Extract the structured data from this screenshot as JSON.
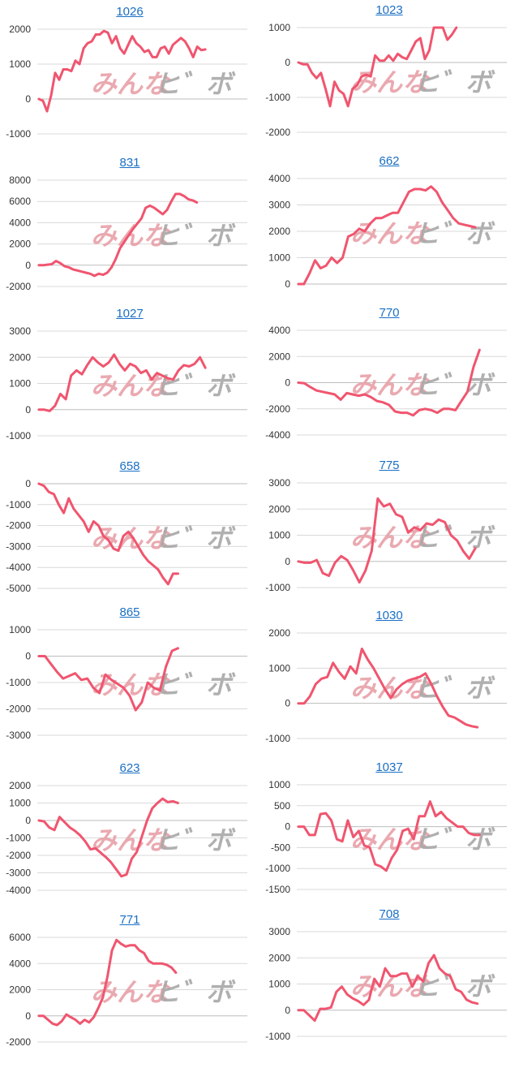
{
  "colors": {
    "line": "#f0556f",
    "grid": "#d9d9d9",
    "title": "#1a6fc4",
    "watermark_red": "#e8a0a8",
    "watermark_gray": "#a8a8a8"
  },
  "watermark": {
    "left": "みんな",
    "right": "ヒ゛ボ"
  },
  "chart_data": [
    {
      "type": "line",
      "title": "1026",
      "yticks": [
        2000,
        1000,
        0,
        -1000
      ],
      "ylim": [
        -1000,
        2000
      ],
      "values": [
        0,
        -50,
        -350,
        100,
        750,
        550,
        850,
        850,
        800,
        1100,
        1000,
        1450,
        1600,
        1650,
        1850,
        1850,
        1950,
        1900,
        1600,
        1800,
        1450,
        1300,
        1550,
        1800,
        1600,
        1500,
        1350,
        1400,
        1200,
        1200,
        1450,
        1500,
        1300,
        1550,
        1650,
        1750,
        1650,
        1450,
        1200,
        1500,
        1400,
        1420
      ]
    },
    {
      "type": "line",
      "title": "1023",
      "yticks": [
        1000,
        0,
        -1000,
        -2000
      ],
      "ylim": [
        -2000,
        1000
      ],
      "values": [
        0,
        -50,
        -50,
        -300,
        -450,
        -300,
        -750,
        -1250,
        -550,
        -800,
        -900,
        -1250,
        -750,
        -650,
        -400,
        -350,
        -400,
        200,
        50,
        50,
        200,
        50,
        250,
        150,
        100,
        350,
        600,
        700,
        100,
        350,
        1000,
        1000,
        1000,
        650,
        800,
        1000
      ]
    },
    {
      "type": "line",
      "title": "831",
      "yticks": [
        8000,
        6000,
        4000,
        2000,
        0,
        -2000
      ],
      "ylim": [
        -2000,
        8000
      ],
      "values": [
        0,
        0,
        50,
        100,
        400,
        200,
        -100,
        -200,
        -400,
        -500,
        -600,
        -700,
        -800,
        -1000,
        -800,
        -900,
        -700,
        -200,
        600,
        1600,
        2200,
        2800,
        3400,
        3900,
        4400,
        5400,
        5600,
        5400,
        5100,
        4800,
        5200,
        6000,
        6700,
        6700,
        6500,
        6200,
        6100,
        5900
      ]
    },
    {
      "type": "line",
      "title": "662",
      "yticks": [
        4000,
        3000,
        2000,
        1000,
        0
      ],
      "ylim": [
        0,
        4000
      ],
      "values": [
        0,
        0,
        400,
        900,
        600,
        700,
        1000,
        800,
        1000,
        1800,
        1900,
        2100,
        2000,
        2300,
        2500,
        2500,
        2600,
        2700,
        2700,
        3100,
        3500,
        3600,
        3600,
        3550,
        3700,
        3500,
        3100,
        2800,
        2500,
        2300,
        2250,
        2200,
        2150
      ]
    },
    {
      "type": "line",
      "title": "1027",
      "yticks": [
        3000,
        2000,
        1000,
        0,
        -1000
      ],
      "ylim": [
        -1000,
        3000
      ],
      "values": [
        0,
        0,
        -50,
        150,
        600,
        400,
        1300,
        1500,
        1350,
        1700,
        2000,
        1800,
        1650,
        1800,
        2100,
        1750,
        1500,
        1750,
        1650,
        1400,
        1500,
        1150,
        1400,
        1300,
        1200,
        1150,
        1500,
        1700,
        1650,
        1750,
        2000,
        1600
      ]
    },
    {
      "type": "line",
      "title": "770",
      "yticks": [
        4000,
        2000,
        0,
        -2000,
        -4000
      ],
      "ylim": [
        -4000,
        4000
      ],
      "values": [
        0,
        -50,
        -350,
        -600,
        -700,
        -800,
        -900,
        -1300,
        -800,
        -900,
        -1000,
        -900,
        -1100,
        -1400,
        -1500,
        -1700,
        -2200,
        -2300,
        -2300,
        -2500,
        -2100,
        -2000,
        -2100,
        -2300,
        -2000,
        -2000,
        -2100,
        -1400,
        -700,
        1200,
        2500
      ]
    },
    {
      "type": "line",
      "title": "658",
      "yticks": [
        0,
        -1000,
        -2000,
        -3000,
        -4000,
        -5000
      ],
      "ylim": [
        -5000,
        0
      ],
      "values": [
        0,
        -100,
        -400,
        -500,
        -1000,
        -1400,
        -700,
        -1200,
        -1500,
        -1800,
        -2300,
        -1800,
        -2000,
        -2500,
        -2700,
        -3100,
        -3200,
        -2500,
        -2300,
        -2600,
        -3000,
        -3400,
        -3700,
        -3900,
        -4100,
        -4500,
        -4800,
        -4300,
        -4300
      ]
    },
    {
      "type": "line",
      "title": "775",
      "yticks": [
        3000,
        2000,
        1000,
        0,
        -1000
      ],
      "ylim": [
        -1000,
        3000
      ],
      "values": [
        0,
        -50,
        -50,
        50,
        -450,
        -550,
        -50,
        200,
        50,
        -350,
        -800,
        -350,
        400,
        2400,
        2100,
        2200,
        1800,
        1700,
        1100,
        1300,
        1200,
        1450,
        1400,
        1600,
        1500,
        1000,
        800,
        400,
        100,
        500
      ]
    },
    {
      "type": "line",
      "title": "865",
      "yticks": [
        1000,
        0,
        -1000,
        -2000,
        -3000
      ],
      "ylim": [
        -3000,
        1000
      ],
      "values": [
        0,
        0,
        -300,
        -600,
        -850,
        -750,
        -650,
        -900,
        -850,
        -1200,
        -1400,
        -700,
        -900,
        -1050,
        -1200,
        -1500,
        -2050,
        -1750,
        -1000,
        -1200,
        -1300,
        -400,
        200,
        300
      ]
    },
    {
      "type": "line",
      "title": "1030",
      "yticks": [
        2000,
        1000,
        0,
        -1000
      ],
      "ylim": [
        -1000,
        2000
      ],
      "values": [
        0,
        0,
        200,
        550,
        700,
        750,
        1150,
        900,
        700,
        1050,
        850,
        1550,
        1250,
        1000,
        700,
        400,
        150,
        400,
        550,
        650,
        700,
        750,
        850,
        550,
        200,
        -100,
        -350,
        -400,
        -500,
        -600,
        -650,
        -680
      ]
    },
    {
      "type": "line",
      "title": "623",
      "yticks": [
        2000,
        1000,
        0,
        -1000,
        -2000,
        -3000,
        -4000
      ],
      "ylim": [
        -4000,
        2000
      ],
      "values": [
        0,
        -50,
        -400,
        -550,
        200,
        -100,
        -400,
        -600,
        -850,
        -1200,
        -1650,
        -1600,
        -1850,
        -2100,
        -2400,
        -2800,
        -3200,
        -3100,
        -2200,
        -1800,
        -900,
        0,
        700,
        1000,
        1250,
        1050,
        1100,
        1000
      ]
    },
    {
      "type": "line",
      "title": "1037",
      "yticks": [
        1000,
        500,
        0,
        -500,
        -1000,
        -1500
      ],
      "ylim": [
        -1500,
        1000
      ],
      "values": [
        0,
        0,
        -200,
        -200,
        300,
        320,
        150,
        -300,
        -350,
        150,
        -250,
        -100,
        -450,
        -500,
        -900,
        -950,
        -1050,
        -750,
        -550,
        -100,
        -50,
        -300,
        250,
        250,
        600,
        250,
        350,
        200,
        100,
        0,
        0,
        -150,
        -200,
        -200
      ]
    },
    {
      "type": "line",
      "title": "771",
      "yticks": [
        6000,
        4000,
        2000,
        0,
        -2000
      ],
      "ylim": [
        -2000,
        6000
      ],
      "values": [
        0,
        0,
        -300,
        -600,
        -700,
        -400,
        100,
        -100,
        -300,
        -600,
        -300,
        -500,
        -100,
        600,
        1400,
        3000,
        5000,
        5800,
        5500,
        5300,
        5400,
        5400,
        5000,
        4800,
        4200,
        4000,
        4000,
        4000,
        3900,
        3700,
        3300
      ]
    },
    {
      "type": "line",
      "title": "708",
      "yticks": [
        3000,
        2000,
        1000,
        0,
        -1000
      ],
      "ylim": [
        -1000,
        3000
      ],
      "values": [
        0,
        0,
        -200,
        -400,
        50,
        50,
        100,
        700,
        900,
        600,
        450,
        350,
        200,
        400,
        1200,
        900,
        1600,
        1300,
        1300,
        1400,
        1400,
        900,
        1300,
        1100,
        1800,
        2100,
        1600,
        1400,
        1300,
        800,
        700,
        400,
        300,
        250
      ]
    }
  ]
}
